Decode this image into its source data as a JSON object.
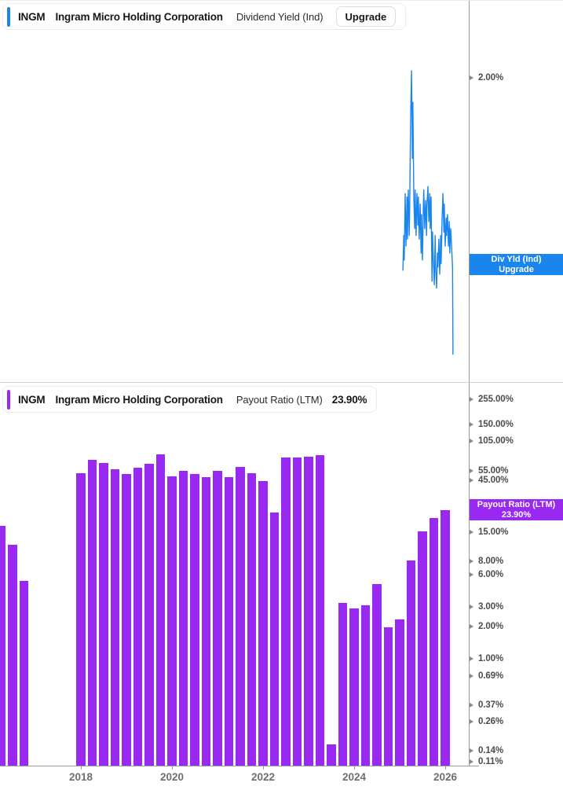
{
  "panels": {
    "dividend_yield": {
      "ticker": "INGM",
      "company": "Ingram Micro Holding Corporation",
      "metric": "Dividend Yield (Ind)",
      "action_label": "Upgrade",
      "accent_color": "#1B85EE",
      "tag": {
        "line1": "Div Yld (Ind)",
        "line2": "Upgrade",
        "color": "#1B85EE"
      }
    },
    "payout_ratio": {
      "ticker": "INGM",
      "company": "Ingram Micro Holding Corporation",
      "metric": "Payout Ratio (LTM)",
      "current_value": "23.90%",
      "accent_color": "#9929F0",
      "tag": {
        "line1": "Payout Ratio (LTM)",
        "line2": "23.90%",
        "color": "#9929F0"
      }
    }
  },
  "xaxis": {
    "year_labels": [
      "2018",
      "2020",
      "2022",
      "2024",
      "2026"
    ]
  },
  "chart_data": [
    {
      "type": "line",
      "name": "Dividend Yield (Ind)",
      "color": "#1B85EE",
      "y_scale": "linear",
      "y_tick": {
        "label": "2.00%",
        "value": 2.0
      },
      "x_unit": "decimal_year",
      "points": [
        [
          2025.07,
          1.45
        ],
        [
          2025.09,
          1.55
        ],
        [
          2025.1,
          1.48
        ],
        [
          2025.12,
          1.67
        ],
        [
          2025.14,
          1.52
        ],
        [
          2025.16,
          1.66
        ],
        [
          2025.17,
          1.54
        ],
        [
          2025.19,
          1.68
        ],
        [
          2025.21,
          1.55
        ],
        [
          2025.22,
          1.64
        ],
        [
          2025.24,
          1.88
        ],
        [
          2025.26,
          2.02
        ],
        [
          2025.28,
          1.77
        ],
        [
          2025.29,
          1.93
        ],
        [
          2025.31,
          1.66
        ],
        [
          2025.33,
          1.57
        ],
        [
          2025.34,
          1.68
        ],
        [
          2025.36,
          1.55
        ],
        [
          2025.38,
          1.67
        ],
        [
          2025.4,
          1.58
        ],
        [
          2025.41,
          1.66
        ],
        [
          2025.43,
          1.54
        ],
        [
          2025.45,
          1.64
        ],
        [
          2025.47,
          1.5
        ],
        [
          2025.48,
          1.61
        ],
        [
          2025.5,
          1.48
        ],
        [
          2025.52,
          1.64
        ],
        [
          2025.53,
          1.68
        ],
        [
          2025.55,
          1.57
        ],
        [
          2025.57,
          1.65
        ],
        [
          2025.59,
          1.55
        ],
        [
          2025.6,
          1.64
        ],
        [
          2025.62,
          1.69
        ],
        [
          2025.64,
          1.59
        ],
        [
          2025.66,
          1.67
        ],
        [
          2025.67,
          1.57
        ],
        [
          2025.69,
          1.66
        ],
        [
          2025.71,
          1.42
        ],
        [
          2025.72,
          1.56
        ],
        [
          2025.74,
          1.48
        ],
        [
          2025.76,
          1.41
        ],
        [
          2025.78,
          1.55
        ],
        [
          2025.79,
          1.46
        ],
        [
          2025.81,
          1.4
        ],
        [
          2025.83,
          1.5
        ],
        [
          2025.84,
          1.46
        ],
        [
          2025.86,
          1.54
        ],
        [
          2025.88,
          1.44
        ],
        [
          2025.9,
          1.55
        ],
        [
          2025.91,
          1.47
        ],
        [
          2025.93,
          1.59
        ],
        [
          2025.95,
          1.67
        ],
        [
          2025.97,
          1.56
        ],
        [
          2025.98,
          1.64
        ],
        [
          2026.0,
          1.52
        ],
        [
          2026.02,
          1.6
        ],
        [
          2026.03,
          1.55
        ],
        [
          2026.05,
          1.61
        ],
        [
          2026.07,
          1.52
        ],
        [
          2026.09,
          1.59
        ],
        [
          2026.1,
          1.5
        ],
        [
          2026.12,
          1.57
        ],
        [
          2026.14,
          1.52
        ],
        [
          2026.16,
          1.46
        ],
        [
          2026.17,
          1.21
        ]
      ]
    },
    {
      "type": "bar",
      "name": "Payout Ratio (LTM)",
      "color": "#9929F0",
      "y_scale": "log",
      "y_ticks": [
        {
          "value": 255,
          "label": "255.00%"
        },
        {
          "value": 150,
          "label": "150.00%"
        },
        {
          "value": 105,
          "label": "105.00%"
        },
        {
          "value": 55,
          "label": "55.00%"
        },
        {
          "value": 45,
          "label": "45.00%"
        },
        {
          "value": 15,
          "label": "15.00%"
        },
        {
          "value": 8,
          "label": "8.00%"
        },
        {
          "value": 6,
          "label": "6.00%"
        },
        {
          "value": 3,
          "label": "3.00%"
        },
        {
          "value": 2,
          "label": "2.00%"
        },
        {
          "value": 1,
          "label": "1.00%"
        },
        {
          "value": 0.69,
          "label": "0.69%"
        },
        {
          "value": 0.37,
          "label": "0.37%"
        },
        {
          "value": 0.26,
          "label": "0.26%"
        },
        {
          "value": 0.14,
          "label": "0.14%"
        },
        {
          "value": 0.11,
          "label": "0.11%"
        }
      ],
      "x_unit": "decimal_year",
      "bar_start_year": 2016.25,
      "bar_step_years": 0.25,
      "values": [
        17.0,
        11.4,
        5.3,
        null,
        null,
        null,
        null,
        52.5,
        70.0,
        65.0,
        57.0,
        51.5,
        59.0,
        64.0,
        78.5,
        49.0,
        55.5,
        51.5,
        48.0,
        55.5,
        48.0,
        60.0,
        52.5,
        44.5,
        22.7,
        73.0,
        73.0,
        74.5,
        78.0,
        0.16,
        3.3,
        2.9,
        3.1,
        4.9,
        1.95,
        2.3,
        8.1,
        15.1,
        20.2,
        23.9
      ]
    }
  ]
}
